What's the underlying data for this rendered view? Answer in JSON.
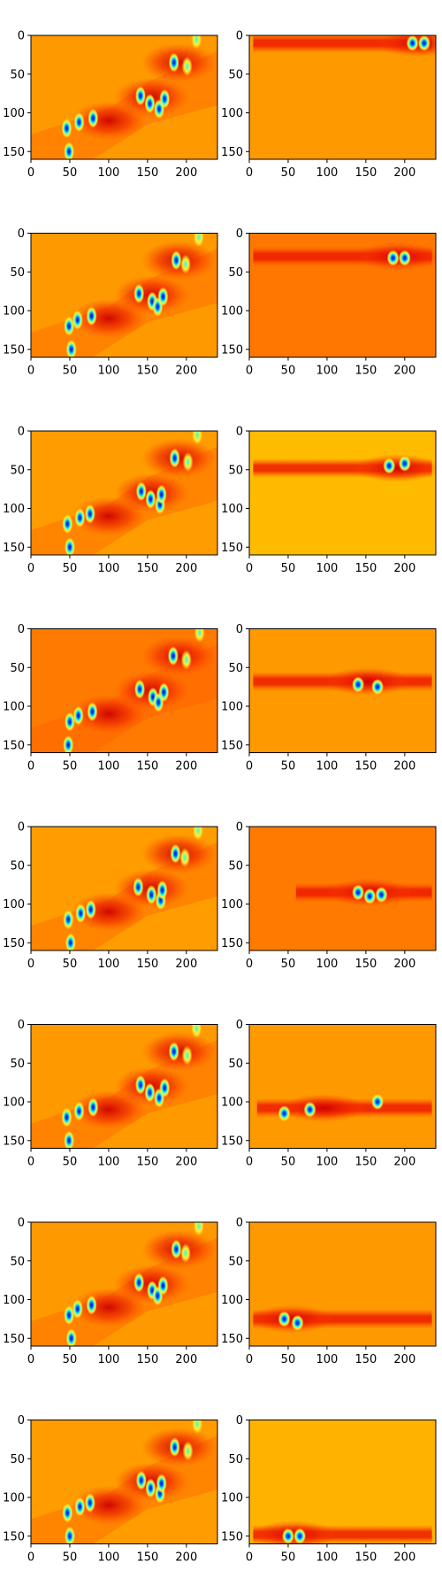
{
  "chart_data": {
    "type": "heatmap",
    "colormap": "jet",
    "layout": "8 rows x 2 columns of image panels",
    "grid": false,
    "image_shape": [
      160,
      240
    ],
    "xlim": [
      0,
      240
    ],
    "ylim": [
      160,
      0
    ],
    "xticks": [
      0,
      50,
      100,
      150,
      200
    ],
    "yticks": [
      0,
      50,
      100,
      150
    ],
    "xtick_labels": [
      "0",
      "50",
      "100",
      "150",
      "200"
    ],
    "ytick_labels": [
      "0",
      "50",
      "100",
      "150"
    ],
    "title": "",
    "xlabel": "",
    "ylabel": "",
    "left_column": {
      "description_color": "#ff9a00",
      "background_level": 0.78,
      "rows": [
        {
          "row": 1,
          "background_color": "#ff9900"
        },
        {
          "row": 2,
          "background_color": "#ff9900"
        },
        {
          "row": 3,
          "background_color": "#ff9c00"
        },
        {
          "row": 4,
          "background_color": "#ff7a00"
        },
        {
          "row": 5,
          "background_color": "#ff9c00"
        },
        {
          "row": 6,
          "background_color": "#ff9900"
        },
        {
          "row": 7,
          "background_color": "#ff9900"
        },
        {
          "row": 8,
          "background_color": "#ff9c00"
        }
      ],
      "blobs": [
        {
          "x": 48,
          "y": 120,
          "level": "low"
        },
        {
          "x": 62,
          "y": 112,
          "level": "low"
        },
        {
          "x": 78,
          "y": 107,
          "level": "low"
        },
        {
          "x": 50,
          "y": 150,
          "level": "low"
        },
        {
          "x": 140,
          "y": 78,
          "level": "low"
        },
        {
          "x": 155,
          "y": 88,
          "level": "low"
        },
        {
          "x": 165,
          "y": 95,
          "level": "low"
        },
        {
          "x": 170,
          "y": 82,
          "level": "low"
        },
        {
          "x": 185,
          "y": 35,
          "level": "low"
        },
        {
          "x": 200,
          "y": 40,
          "level": "mid"
        },
        {
          "x": 215,
          "y": 5,
          "level": "mid"
        }
      ],
      "heat_zones": [
        {
          "x": 155,
          "y": 80,
          "level": "high"
        },
        {
          "x": 190,
          "y": 35,
          "level": "high"
        },
        {
          "x": 100,
          "y": 110,
          "level": "high"
        }
      ]
    },
    "right_column": {
      "rows": [
        {
          "row": 1,
          "background_color": "#ff9900",
          "band_center_y": 10,
          "band_x_range": [
            5,
            235
          ],
          "hotspots": [
            {
              "x": 210,
              "y": 10
            },
            {
              "x": 225,
              "y": 10
            }
          ]
        },
        {
          "row": 2,
          "background_color": "#ff7700",
          "band_center_y": 30,
          "band_x_range": [
            5,
            235
          ],
          "hotspots": [
            {
              "x": 185,
              "y": 32
            },
            {
              "x": 200,
              "y": 32
            }
          ]
        },
        {
          "row": 3,
          "background_color": "#ffbb00",
          "band_center_y": 48,
          "band_x_range": [
            5,
            235
          ],
          "hotspots": [
            {
              "x": 180,
              "y": 45
            },
            {
              "x": 200,
              "y": 42
            }
          ]
        },
        {
          "row": 4,
          "background_color": "#ff9900",
          "band_center_y": 68,
          "band_x_range": [
            5,
            235
          ],
          "hotspots": [
            {
              "x": 140,
              "y": 72
            },
            {
              "x": 165,
              "y": 75
            }
          ]
        },
        {
          "row": 5,
          "background_color": "#ff7a00",
          "band_center_y": 85,
          "band_x_range": [
            60,
            235
          ],
          "hotspots": [
            {
              "x": 140,
              "y": 85
            },
            {
              "x": 155,
              "y": 90
            },
            {
              "x": 170,
              "y": 88
            }
          ]
        },
        {
          "row": 6,
          "background_color": "#ff9900",
          "band_center_y": 108,
          "band_x_range": [
            10,
            235
          ],
          "hotspots": [
            {
              "x": 45,
              "y": 115
            },
            {
              "x": 78,
              "y": 110
            },
            {
              "x": 165,
              "y": 100
            }
          ]
        },
        {
          "row": 7,
          "background_color": "#ff9900",
          "band_center_y": 125,
          "band_x_range": [
            5,
            235
          ],
          "hotspots": [
            {
              "x": 45,
              "y": 125
            },
            {
              "x": 62,
              "y": 130
            }
          ]
        },
        {
          "row": 8,
          "background_color": "#ffb300",
          "band_center_y": 148,
          "band_x_range": [
            5,
            235
          ],
          "hotspots": [
            {
              "x": 50,
              "y": 150
            },
            {
              "x": 65,
              "y": 150
            }
          ]
        }
      ]
    },
    "colors": {
      "band": "#ee1a00",
      "band_dark": "#cc0000",
      "hot_yellow": "#ffee33",
      "hot_cyan": "#33ffdd",
      "hot_blue": "#0055ff",
      "hot_navy": "#0000aa",
      "frame": "#000000",
      "tick_text": "#000000"
    }
  }
}
